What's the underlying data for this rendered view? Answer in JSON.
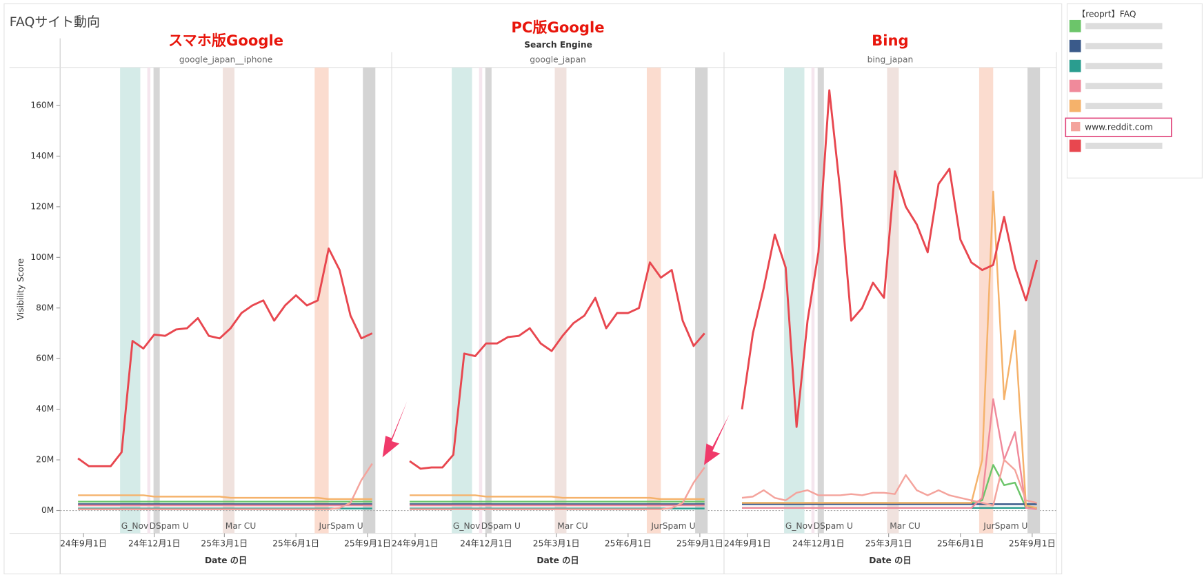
{
  "title": "FAQサイト動向",
  "header_label": "Search Engine",
  "legend": {
    "title": "【reoprt】FAQ"
  },
  "bands": [
    {
      "start": "2024-10-18",
      "end": "2024-11-13",
      "color": "#d5ebe8"
    },
    {
      "start": "2024-11-22",
      "end": "2024-11-26",
      "color": "#f5e6ee"
    },
    {
      "start": "2024-11-30",
      "end": "2024-12-08",
      "color": "#d6d6d6"
    },
    {
      "start": "2025-02-27",
      "end": "2025-03-14",
      "color": "#f0e2de"
    },
    {
      "start": "2025-06-25",
      "end": "2025-07-13",
      "color": "#fbdccf"
    },
    {
      "start": "2025-08-26",
      "end": "2025-09-11",
      "color": "#d4d4d4"
    }
  ],
  "band_labels": [
    {
      "x": "2024-11-06",
      "text": "G_Nov"
    },
    {
      "x": "2024-12-20",
      "text": "DSpam U"
    },
    {
      "x": "2025-03-22",
      "text": "Mar CU"
    },
    {
      "x": "2025-07-29",
      "text": "JurSpam U"
    }
  ],
  "chart_data": [
    {
      "type": "line",
      "heading": "スマホ版Google",
      "facet": "google_japan__iphone",
      "xlabel": "Date の日",
      "ylabel": "Visibility Score",
      "x": [
        "2024-08-25",
        "2024-09-08",
        "2024-09-22",
        "2024-10-06",
        "2024-10-20",
        "2024-11-03",
        "2024-11-17",
        "2024-12-01",
        "2024-12-15",
        "2024-12-29",
        "2025-01-12",
        "2025-01-26",
        "2025-02-09",
        "2025-02-23",
        "2025-03-09",
        "2025-03-23",
        "2025-04-06",
        "2025-04-20",
        "2025-05-04",
        "2025-05-18",
        "2025-06-01",
        "2025-06-15",
        "2025-06-29",
        "2025-07-13",
        "2025-07-27",
        "2025-08-10",
        "2025-08-24",
        "2025-09-07"
      ],
      "xlim": [
        "2024-08-02",
        "2025-10-02"
      ],
      "xticks": [
        {
          "value": "2024-09-01",
          "label": "24年9月1日"
        },
        {
          "value": "2024-12-01",
          "label": "24年12月1日"
        },
        {
          "value": "2025-03-01",
          "label": "25年3月1日"
        },
        {
          "value": "2025-06-01",
          "label": "25年6月1日"
        },
        {
          "value": "2025-09-01",
          "label": "25年9月1日"
        }
      ],
      "ylim": [
        -9,
        175
      ],
      "yticks": [
        {
          "value": 0,
          "label": "0M"
        },
        {
          "value": 20,
          "label": "20M"
        },
        {
          "value": 40,
          "label": "40M"
        },
        {
          "value": 60,
          "label": "60M"
        },
        {
          "value": 80,
          "label": "80M"
        },
        {
          "value": 100,
          "label": "100M"
        },
        {
          "value": 120,
          "label": "120M"
        },
        {
          "value": 140,
          "label": "140M"
        },
        {
          "value": 160,
          "label": "160M"
        }
      ],
      "series": [
        {
          "color": "#6cc56a",
          "values": [
            3.5,
            3.5,
            3.5,
            3.5,
            3.5,
            3.5,
            3.5,
            3.5,
            3.5,
            3.5,
            3.5,
            3.5,
            3.5,
            3.5,
            3.5,
            3.5,
            3.5,
            3.5,
            3.5,
            3.5,
            3.5,
            3.5,
            3.5,
            3.5,
            3.5,
            3.5,
            3.5,
            3.5
          ]
        },
        {
          "color": "#3a5a8a",
          "values": [
            2.5,
            2.5,
            2.5,
            2.5,
            2.5,
            2.5,
            2.5,
            2.5,
            2.5,
            2.5,
            2.5,
            2.5,
            2.5,
            2.5,
            2.5,
            2.5,
            2.5,
            2.5,
            2.5,
            2.5,
            2.5,
            2.5,
            2.5,
            2.5,
            2.5,
            2.5,
            2.5,
            2.5
          ]
        },
        {
          "color": "#2a9d8f",
          "values": [
            0.8,
            0.8,
            0.8,
            0.8,
            0.8,
            0.8,
            0.8,
            0.8,
            0.8,
            0.8,
            0.8,
            0.8,
            0.8,
            0.8,
            0.8,
            0.8,
            0.8,
            0.8,
            0.8,
            0.8,
            0.8,
            0.8,
            0.8,
            0.8,
            0.8,
            0.8,
            0.8,
            0.8
          ]
        },
        {
          "color": "#f08a9b",
          "values": [
            2,
            2,
            2,
            2,
            2,
            2,
            2,
            2,
            2,
            2,
            2,
            2,
            2,
            2,
            2,
            2,
            2,
            2,
            2,
            2,
            2,
            2,
            2,
            2,
            2,
            2,
            2,
            2
          ]
        },
        {
          "color": "#f5b26b",
          "values": [
            6,
            6,
            6,
            6,
            6,
            6,
            6,
            5.5,
            5.5,
            5.5,
            5.5,
            5.5,
            5.5,
            5.5,
            5,
            5,
            5,
            5,
            5,
            5,
            5,
            5,
            5,
            4.5,
            4.5,
            4.5,
            4.5,
            4.5
          ]
        },
        {
          "name": "www.reddit.com",
          "color": "#f4a39c",
          "values": [
            0.5,
            0.5,
            0.5,
            0.5,
            0.5,
            0.5,
            0.5,
            0.5,
            0.5,
            0.5,
            0.5,
            0.5,
            0.5,
            0.5,
            0.5,
            0.5,
            0.5,
            0.5,
            0.5,
            0.5,
            0.5,
            0.5,
            0.5,
            0.5,
            1,
            3,
            12,
            18.5
          ]
        },
        {
          "color": "#e8474f",
          "values": [
            20.6,
            17.5,
            17.5,
            17.5,
            23,
            67,
            64,
            69.5,
            69,
            71.5,
            72,
            76,
            69,
            68,
            72,
            78,
            81,
            83,
            75,
            81,
            85,
            81,
            83,
            103.5,
            95,
            77,
            68,
            70
          ]
        }
      ]
    },
    {
      "type": "line",
      "heading": "PC版Google",
      "facet": "google_japan",
      "xlabel": "Date の日",
      "x": [
        "2024-08-25",
        "2024-09-08",
        "2024-09-22",
        "2024-10-06",
        "2024-10-20",
        "2024-11-03",
        "2024-11-17",
        "2024-12-01",
        "2024-12-15",
        "2024-12-29",
        "2025-01-12",
        "2025-01-26",
        "2025-02-09",
        "2025-02-23",
        "2025-03-09",
        "2025-03-23",
        "2025-04-06",
        "2025-04-20",
        "2025-05-04",
        "2025-05-18",
        "2025-06-01",
        "2025-06-15",
        "2025-06-29",
        "2025-07-13",
        "2025-07-27",
        "2025-08-10",
        "2025-08-24",
        "2025-09-07"
      ],
      "xlim": [
        "2024-08-02",
        "2025-10-02"
      ],
      "xticks": [
        {
          "value": "2024-09-01",
          "label": "24年9月1日"
        },
        {
          "value": "2024-12-01",
          "label": "24年12月1日"
        },
        {
          "value": "2025-03-01",
          "label": "25年3月1日"
        },
        {
          "value": "2025-06-01",
          "label": "25年6月1日"
        },
        {
          "value": "2025-09-01",
          "label": "25年9月1日"
        }
      ],
      "ylim": [
        -9,
        175
      ],
      "series": [
        {
          "color": "#6cc56a",
          "values": [
            3.5,
            3.5,
            3.5,
            3.5,
            3.5,
            3.5,
            3.5,
            3.5,
            3.5,
            3.5,
            3.5,
            3.5,
            3.5,
            3.5,
            3.5,
            3.5,
            3.5,
            3.5,
            3.5,
            3.5,
            3.5,
            3.5,
            3.5,
            3.5,
            3.5,
            3.5,
            3.5,
            3.5
          ]
        },
        {
          "color": "#3a5a8a",
          "values": [
            2.5,
            2.5,
            2.5,
            2.5,
            2.5,
            2.5,
            2.5,
            2.5,
            2.5,
            2.5,
            2.5,
            2.5,
            2.5,
            2.5,
            2.5,
            2.5,
            2.5,
            2.5,
            2.5,
            2.5,
            2.5,
            2.5,
            2.5,
            2.5,
            2.5,
            2.5,
            2.5,
            2.5
          ]
        },
        {
          "color": "#2a9d8f",
          "values": [
            0.8,
            0.8,
            0.8,
            0.8,
            0.8,
            0.8,
            0.8,
            0.8,
            0.8,
            0.8,
            0.8,
            0.8,
            0.8,
            0.8,
            0.8,
            0.8,
            0.8,
            0.8,
            0.8,
            0.8,
            0.8,
            0.8,
            0.8,
            0.8,
            0.8,
            0.8,
            0.8,
            0.8
          ]
        },
        {
          "color": "#f08a9b",
          "values": [
            2,
            2,
            2,
            2,
            2,
            2,
            2,
            2,
            2,
            2,
            2,
            2,
            2,
            2,
            2,
            2,
            2,
            2,
            2,
            2,
            2,
            2,
            2,
            2,
            2,
            2,
            2,
            2
          ]
        },
        {
          "color": "#f5b26b",
          "values": [
            6,
            6,
            6,
            6,
            6,
            6,
            6,
            5.5,
            5.5,
            5.5,
            5.5,
            5.5,
            5.5,
            5.5,
            5,
            5,
            5,
            5,
            5,
            5,
            5,
            5,
            5,
            4.5,
            4.5,
            4.5,
            4.5,
            4.5
          ]
        },
        {
          "name": "www.reddit.com",
          "color": "#f4a39c",
          "values": [
            0.5,
            0.5,
            0.5,
            0.5,
            0.5,
            0.5,
            0.5,
            0.5,
            0.5,
            0.5,
            0.5,
            0.5,
            0.5,
            0.5,
            0.5,
            0.5,
            0.5,
            0.5,
            0.5,
            0.5,
            0.5,
            0.5,
            0.5,
            0.5,
            1,
            3,
            11,
            17
          ]
        },
        {
          "color": "#e8474f",
          "values": [
            19.5,
            16.5,
            17,
            17,
            22,
            62,
            61,
            66,
            66,
            68.5,
            69,
            72,
            66,
            63,
            69,
            74,
            77,
            84,
            72,
            78,
            78,
            80,
            98,
            92,
            95,
            75,
            65,
            70
          ]
        }
      ]
    },
    {
      "type": "line",
      "heading": "Bing",
      "facet": "bing_japan",
      "xlabel": "Date の日",
      "x": [
        "2024-08-25",
        "2024-09-08",
        "2024-09-22",
        "2024-10-06",
        "2024-10-20",
        "2024-11-03",
        "2024-11-17",
        "2024-12-01",
        "2024-12-15",
        "2024-12-29",
        "2025-01-12",
        "2025-01-26",
        "2025-02-09",
        "2025-02-23",
        "2025-03-09",
        "2025-03-23",
        "2025-04-06",
        "2025-04-20",
        "2025-05-04",
        "2025-05-18",
        "2025-06-01",
        "2025-06-15",
        "2025-06-29",
        "2025-07-13",
        "2025-07-27",
        "2025-08-10",
        "2025-08-24",
        "2025-09-07"
      ],
      "xlim": [
        "2024-08-02",
        "2025-10-02"
      ],
      "xticks": [
        {
          "value": "2024-09-01",
          "label": "24年9月1日"
        },
        {
          "value": "2024-12-01",
          "label": "24年12月1日"
        },
        {
          "value": "2025-03-01",
          "label": "25年3月1日"
        },
        {
          "value": "2025-06-01",
          "label": "25年6月1日"
        },
        {
          "value": "2025-09-01",
          "label": "25年9月1日"
        }
      ],
      "ylim": [
        -9,
        175
      ],
      "series": [
        {
          "color": "#6cc56a",
          "values": [
            3,
            3,
            3,
            3,
            3,
            3,
            3,
            3,
            3,
            3,
            3,
            3,
            3,
            3,
            3,
            3,
            3,
            3,
            3,
            3,
            3,
            3,
            4,
            18,
            10,
            11,
            1,
            1
          ]
        },
        {
          "color": "#3a5a8a",
          "values": [
            2.5,
            2.5,
            2.5,
            2.5,
            2.5,
            2.5,
            2.5,
            2.5,
            2.5,
            2.5,
            2.5,
            2.5,
            2.5,
            2.5,
            2.5,
            2.5,
            2.5,
            2.5,
            2.5,
            2.5,
            2.5,
            2.5,
            2.5,
            2.5,
            2.5,
            2.5,
            2.5,
            2.5
          ]
        },
        {
          "color": "#2a9d8f",
          "values": [
            1,
            1,
            1,
            1,
            1,
            1,
            1,
            1,
            1,
            1,
            1,
            1,
            1,
            1,
            1,
            1,
            1,
            1,
            1,
            1,
            1,
            1,
            1,
            1,
            1,
            1,
            1,
            1
          ]
        },
        {
          "color": "#f08a9b",
          "values": [
            1,
            1,
            1,
            1,
            1,
            1,
            1,
            1,
            1,
            1,
            1,
            1,
            1,
            1,
            1,
            1,
            1,
            1,
            1,
            1,
            1,
            1,
            5,
            44,
            20,
            31,
            1,
            0.5
          ]
        },
        {
          "color": "#f5b26b",
          "values": [
            3,
            3,
            3,
            3,
            3,
            3,
            3,
            3,
            3,
            3,
            3,
            3,
            3,
            3,
            3,
            3,
            3,
            3,
            3,
            3,
            3,
            3,
            20,
            126,
            44,
            71,
            2,
            1
          ]
        },
        {
          "name": "www.reddit.com",
          "color": "#f4a39c",
          "values": [
            5,
            5.5,
            8,
            5,
            4,
            7,
            8,
            6,
            6,
            6,
            6.5,
            6,
            7,
            7,
            6.5,
            14,
            8,
            6,
            8,
            6,
            5,
            4,
            3,
            2,
            20,
            16,
            4,
            3
          ]
        },
        {
          "color": "#e8474f",
          "values": [
            40,
            70,
            88,
            109,
            96,
            33,
            75,
            102,
            166,
            126,
            75,
            80,
            90,
            84,
            134,
            120,
            113,
            102,
            129,
            135,
            107,
            98,
            95,
            97,
            116,
            96,
            83,
            99
          ]
        }
      ]
    }
  ]
}
